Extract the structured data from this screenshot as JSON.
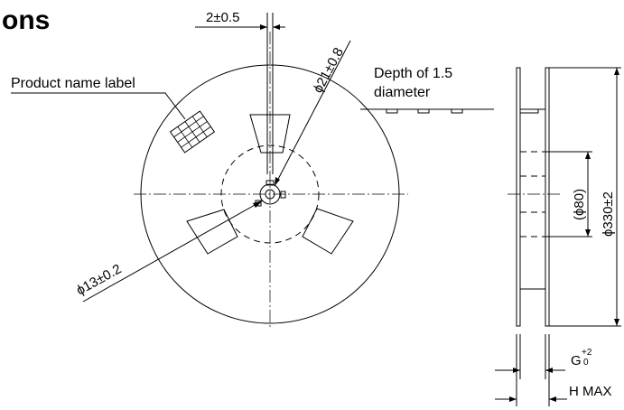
{
  "heading": "ons",
  "labels": {
    "width_tol": "2±0.5",
    "dia21": "ϕ21±0.8",
    "depth_line1": "Depth of 1.5",
    "depth_line2": "diameter",
    "product_label": "Product name label",
    "dia13": "ϕ13±0.2",
    "dia80": "(ϕ80)",
    "dia330": "ϕ330±2",
    "g_main": "G",
    "g_sup": "+2",
    "g_sub": "0",
    "hmax": "H MAX"
  },
  "colors": {
    "line": "#000000",
    "background": "#ffffff"
  }
}
